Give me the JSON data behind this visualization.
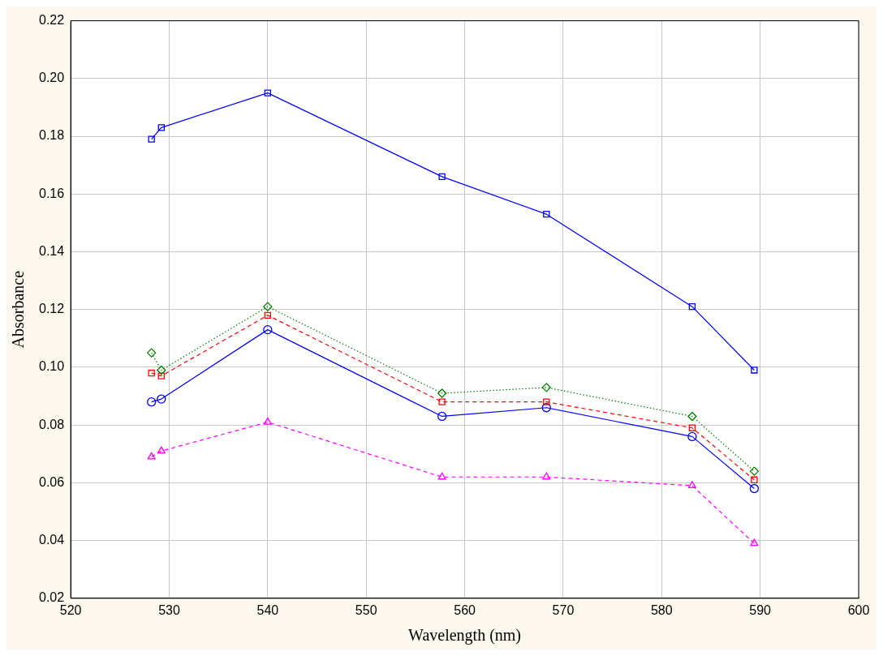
{
  "chart_data": {
    "type": "line",
    "xlabel": "Wavelength (nm)",
    "ylabel": "Absorbance",
    "x": [
      528.2,
      529.2,
      540,
      557.7,
      568.3,
      583.1,
      589.4
    ],
    "xlim": [
      520,
      600
    ],
    "xticks": [
      520,
      530,
      540,
      550,
      560,
      570,
      580,
      590,
      600
    ],
    "ylim": [
      0.02,
      0.22
    ],
    "yticks": [
      0.02,
      0.04,
      0.06,
      0.08,
      {
        "value": 0.1,
        "label": "0.10"
      },
      0.12,
      0.14,
      0.16,
      0.18,
      {
        "value": 0.2,
        "label": "0.20"
      },
      0.22
    ],
    "grid": true,
    "legend": false,
    "series": [
      {
        "color": "#0000ff",
        "marker": "square",
        "line_style": "solid",
        "values": [
          0.179,
          0.183,
          0.195,
          0.166,
          0.153,
          0.121,
          0.099
        ]
      },
      {
        "color": "#008000",
        "marker": "diamond",
        "line_style": "dotted",
        "values": [
          0.105,
          0.099,
          0.121,
          0.091,
          0.093,
          0.083,
          0.064
        ]
      },
      {
        "color": "#ff0000",
        "marker": "square",
        "line_style": "dashed",
        "values": [
          0.098,
          0.097,
          0.118,
          0.088,
          0.088,
          0.079,
          0.061
        ]
      },
      {
        "color": "#0000ff",
        "marker": "circle",
        "line_style": "solid",
        "values": [
          0.088,
          0.089,
          0.113,
          0.083,
          0.086,
          0.076,
          0.058
        ]
      },
      {
        "color": "#ff00ff",
        "marker": "triangle",
        "line_style": "dashed",
        "values": [
          0.069,
          0.071,
          0.081,
          0.062,
          0.062,
          0.059,
          0.039
        ]
      }
    ]
  }
}
